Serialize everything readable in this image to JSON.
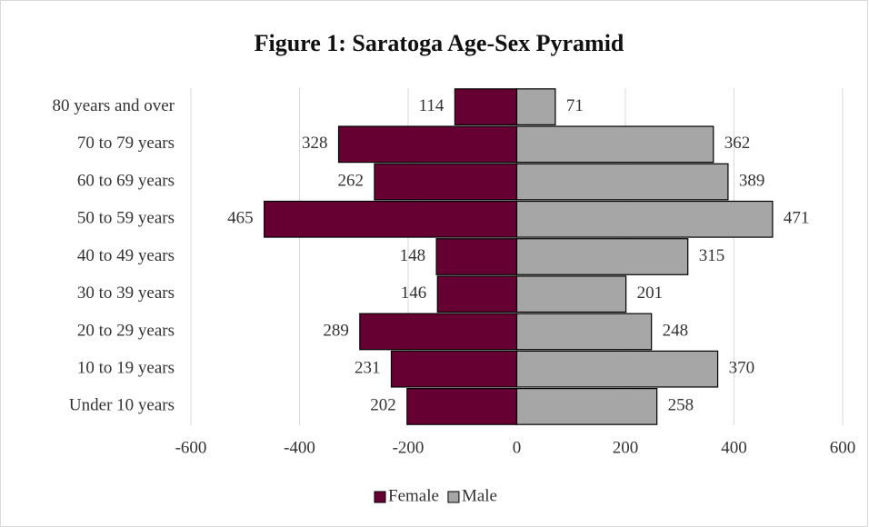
{
  "chart_data": {
    "type": "bar",
    "orientation": "horizontal",
    "title": "Figure 1: Saratoga Age-Sex Pyramid",
    "categories": [
      "80 years and over",
      "70 to 79 years",
      "60 to 69 years",
      "50 to 59 years",
      "40 to 49 years",
      "30 to 39 years",
      "20 to 29 years",
      "10 to 19 years",
      "Under 10 years"
    ],
    "series": [
      {
        "name": "Female",
        "color": "#660033",
        "values": [
          -114,
          -328,
          -262,
          -465,
          -148,
          -146,
          -289,
          -231,
          -202
        ],
        "value_labels": [
          "114",
          "328",
          "262",
          "465",
          "148",
          "146",
          "289",
          "231",
          "202"
        ]
      },
      {
        "name": "Male",
        "color": "#a6a6a6",
        "values": [
          71,
          362,
          389,
          471,
          315,
          201,
          248,
          370,
          258
        ]
      }
    ],
    "xlim": [
      -600,
      600
    ],
    "xticks": [
      -600,
      -400,
      -200,
      0,
      200,
      400,
      600
    ],
    "grid": true,
    "legend": "bottom"
  }
}
